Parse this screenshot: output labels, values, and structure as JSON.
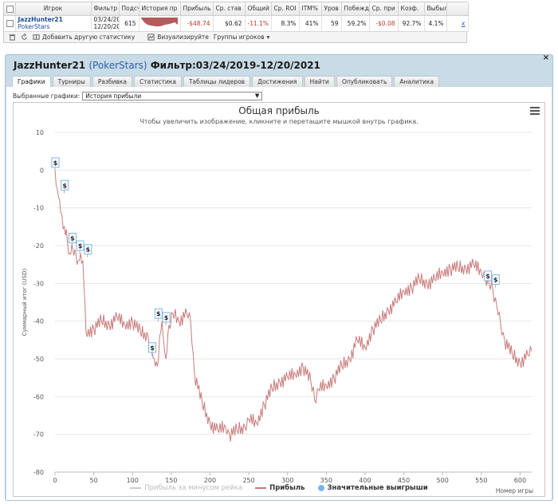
{
  "stats_table": {
    "columns": [
      "Игрок",
      "Фильтр",
      "Подсч",
      "История пр",
      "Прибыль",
      "Ср. став",
      "Общий",
      "Ср. ROI",
      "ITM%",
      "Уров",
      "Побежд",
      "Ср. при",
      "Коэф.",
      "Выбыл"
    ],
    "row": {
      "player": "JazzHunter21",
      "site": "PokerStars",
      "filter_from": "03/24/20",
      "filter_to": "12/20/20",
      "count": "615",
      "profit": "-$48.74",
      "avg_stake": "$0.62",
      "total": "-11.1%",
      "avg_roi": "8.3%",
      "itm": "41%",
      "level": "59",
      "wins": "59.2%",
      "avg_prize": "-$0.08",
      "coef": "92.7%",
      "out": "4.1%",
      "link": "x"
    },
    "toolbar": {
      "add_stats": "Добавить другую статистику",
      "visualize": "Визуализируйте",
      "player_groups": "Группы игроков"
    }
  },
  "window": {
    "player": "JazzHunter21",
    "site_open": "(",
    "site": "PokerStars",
    "site_close": ")",
    "filter": "Фильтр:03/24/2019-12/20/2021",
    "close_symbol": "×",
    "tabs": [
      "Графики",
      "Турниры",
      "Разбивка",
      "Статистика",
      "Таблицы лидеров",
      "Достижения",
      "Найти",
      "Опубликовать",
      "Аналитика"
    ],
    "active_tab": 0,
    "graphs_label": "Выбранные графики:",
    "graph_select": "История прибыли",
    "dollar_symbol": "$"
  },
  "colors": {
    "profit_line": "#c97b7b",
    "rake_line": "#cccccc",
    "big_win_dot": "#7cb5ec",
    "grid": "#e6e6e6",
    "neg": "#c0392b",
    "link": "#2b5fb5"
  },
  "chart_data": {
    "type": "line",
    "title": "Общая прибыль",
    "subtitle": "Чтобы увеличить изображение, кликните и перетащите мышкой внутрь графика.",
    "xlabel": "Номер игры",
    "ylabel": "Суммарный итог (USD)",
    "xlim": [
      0,
      615
    ],
    "ylim": [
      -80,
      10
    ],
    "x_ticks": [
      0,
      50,
      100,
      150,
      200,
      250,
      300,
      350,
      400,
      450,
      500,
      550,
      600
    ],
    "y_ticks": [
      10,
      0,
      -10,
      -20,
      -30,
      -40,
      -50,
      -60,
      -70,
      -80
    ],
    "grid": true,
    "legend_position": "bottom",
    "series": [
      {
        "name": "Прибыль за минусом рейка",
        "values": []
      },
      {
        "name": "Прибыль",
        "x": [
          0,
          3,
          6,
          9,
          12,
          16,
          19,
          23,
          27,
          30,
          33,
          36,
          40,
          50,
          60,
          70,
          80,
          90,
          100,
          110,
          120,
          125,
          128,
          132,
          135,
          138,
          140,
          143,
          147,
          152,
          160,
          170,
          175,
          180,
          190,
          200,
          210,
          220,
          225,
          235,
          245,
          250,
          260,
          270,
          280,
          290,
          300,
          310,
          320,
          330,
          335,
          340,
          350,
          360,
          370,
          380,
          390,
          400,
          410,
          420,
          430,
          440,
          450,
          460,
          470,
          480,
          490,
          500,
          510,
          520,
          530,
          540,
          550,
          555,
          560,
          565,
          570,
          575,
          580,
          590,
          600,
          610,
          615
        ],
        "values": [
          0,
          -5,
          -8,
          -12,
          -15,
          -19,
          -22,
          -21,
          -22,
          -24,
          -22,
          -24,
          -43,
          -42,
          -40,
          -41,
          -39,
          -41,
          -40,
          -43,
          -44,
          -48,
          -50,
          -52,
          -44,
          -40,
          -45,
          -50,
          -41,
          -38,
          -40,
          -38,
          -40,
          -54,
          -62,
          -67,
          -69,
          -68,
          -70,
          -69,
          -68,
          -66,
          -67,
          -62,
          -58,
          -56,
          -55,
          -54,
          -52,
          -56,
          -61,
          -58,
          -57,
          -55,
          -52,
          -50,
          -45,
          -47,
          -42,
          -40,
          -37,
          -35,
          -32,
          -31,
          -29,
          -30,
          -29,
          -27,
          -26,
          -26,
          -26,
          -25,
          -27,
          -28,
          -30,
          -32,
          -36,
          -41,
          -45,
          -49,
          -51,
          -49,
          -48
        ]
      },
      {
        "name": "Значительные выигрыши",
        "x": [
          0,
          12,
          22,
          32,
          42,
          125,
          133,
          143,
          558,
          568
        ],
        "values": [
          2,
          -4,
          -18,
          -20,
          -21,
          -47,
          -38,
          -39,
          -28,
          -29
        ]
      }
    ]
  }
}
